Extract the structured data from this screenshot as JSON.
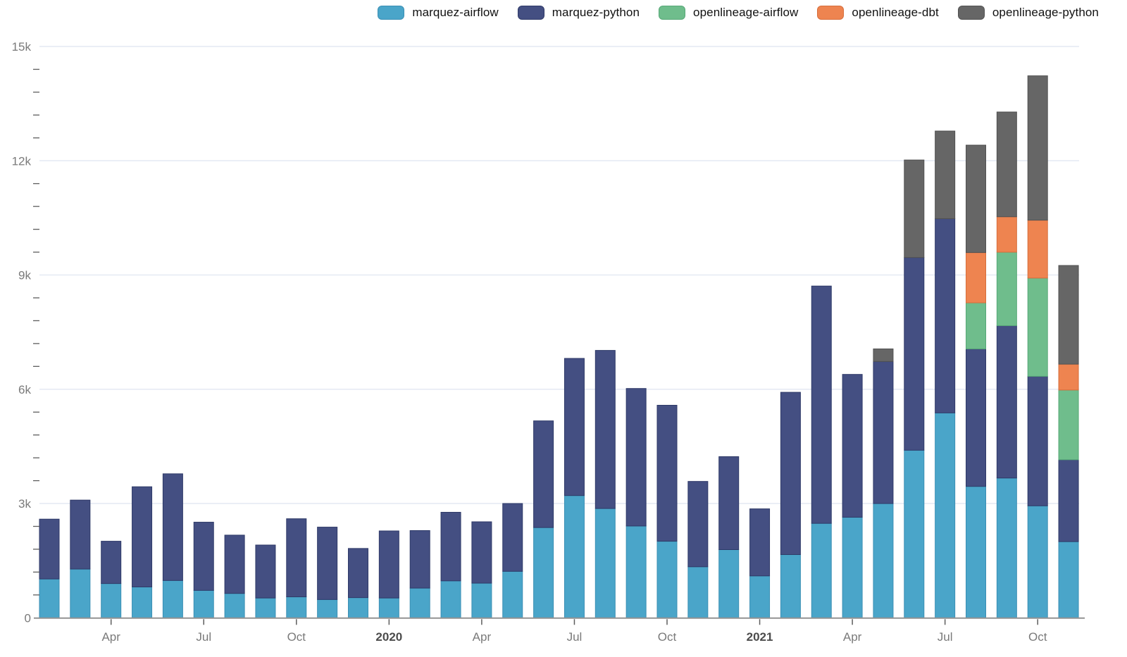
{
  "chart_data": {
    "type": "bar",
    "stacked": true,
    "title": "",
    "xlabel": "",
    "ylabel": "",
    "ylim": [
      0,
      15000
    ],
    "grid": "horizontal-major",
    "legend_position": "top-right",
    "y_major_ticks": [
      {
        "value": 0,
        "label": "0"
      },
      {
        "value": 3000,
        "label": "3k"
      },
      {
        "value": 6000,
        "label": "6k"
      },
      {
        "value": 9000,
        "label": "9k"
      },
      {
        "value": 12000,
        "label": "12k"
      },
      {
        "value": 15000,
        "label": "15k"
      }
    ],
    "y_minor_tick_step": 600,
    "categories": [
      "2019-02",
      "2019-03",
      "2019-04",
      "2019-05",
      "2019-06",
      "2019-07",
      "2019-08",
      "2019-09",
      "2019-10",
      "2019-11",
      "2019-12",
      "2020-01",
      "2020-02",
      "2020-03",
      "2020-04",
      "2020-05",
      "2020-06",
      "2020-07",
      "2020-08",
      "2020-09",
      "2020-10",
      "2020-11",
      "2020-12",
      "2021-01",
      "2021-02",
      "2021-03",
      "2021-04",
      "2021-05",
      "2021-06",
      "2021-07",
      "2021-08",
      "2021-09",
      "2021-10",
      "2021-11"
    ],
    "x_tick_labels": [
      {
        "index": 2,
        "label": "Apr",
        "bold": false
      },
      {
        "index": 5,
        "label": "Jul",
        "bold": false
      },
      {
        "index": 8,
        "label": "Oct",
        "bold": false
      },
      {
        "index": 11,
        "label": "2020",
        "bold": true
      },
      {
        "index": 14,
        "label": "Apr",
        "bold": false
      },
      {
        "index": 17,
        "label": "Jul",
        "bold": false
      },
      {
        "index": 20,
        "label": "Oct",
        "bold": false
      },
      {
        "index": 23,
        "label": "2021",
        "bold": true
      },
      {
        "index": 26,
        "label": "Apr",
        "bold": false
      },
      {
        "index": 29,
        "label": "Jul",
        "bold": false
      },
      {
        "index": 32,
        "label": "Oct",
        "bold": false
      }
    ],
    "series": [
      {
        "name": "marquez-airflow",
        "color": "#4AA5C9",
        "border": "#3B8FB4",
        "values": [
          1020,
          1280,
          900,
          810,
          980,
          720,
          640,
          520,
          550,
          480,
          530,
          520,
          780,
          970,
          910,
          1220,
          2370,
          3210,
          2870,
          2410,
          2010,
          1340,
          1790,
          1100,
          1660,
          2480,
          2640,
          3000,
          4400,
          5380,
          3450,
          3670,
          2940,
          2000
        ]
      },
      {
        "name": "marquez-python",
        "color": "#444F82",
        "border": "#2F3A68",
        "values": [
          1570,
          1810,
          1110,
          2630,
          2800,
          1790,
          1530,
          1390,
          2050,
          1900,
          1290,
          1760,
          1510,
          1800,
          1610,
          1780,
          2800,
          3600,
          4150,
          3610,
          3570,
          2240,
          2440,
          1760,
          4260,
          6230,
          3750,
          3730,
          5060,
          5100,
          3610,
          4000,
          3400,
          2150
        ]
      },
      {
        "name": "openlineage-airflow",
        "color": "#6FBD8C",
        "border": "#57A877",
        "values": [
          0,
          0,
          0,
          0,
          0,
          0,
          0,
          0,
          0,
          0,
          0,
          0,
          0,
          0,
          0,
          0,
          0,
          0,
          0,
          0,
          0,
          0,
          0,
          0,
          0,
          0,
          0,
          0,
          0,
          0,
          1210,
          1930,
          2580,
          1830
        ]
      },
      {
        "name": "openlineage-dbt",
        "color": "#EE8450",
        "border": "#D66E3C",
        "values": [
          0,
          0,
          0,
          0,
          0,
          0,
          0,
          0,
          0,
          0,
          0,
          0,
          0,
          0,
          0,
          0,
          0,
          0,
          0,
          0,
          0,
          0,
          0,
          0,
          0,
          0,
          0,
          0,
          0,
          0,
          1320,
          930,
          1520,
          680
        ]
      },
      {
        "name": "openlineage-python",
        "color": "#666666",
        "border": "#525252",
        "values": [
          0,
          0,
          0,
          0,
          0,
          0,
          0,
          0,
          0,
          0,
          0,
          0,
          0,
          0,
          0,
          0,
          0,
          0,
          0,
          0,
          0,
          0,
          0,
          0,
          0,
          0,
          0,
          330,
          2560,
          2300,
          2820,
          2750,
          3790,
          2590
        ]
      }
    ],
    "colors": {
      "gridline": "#E4E9F3",
      "axis_line": "#939393",
      "tick_mark": "#5E5E5E",
      "tick_label": "#7A7A7A",
      "year_label": "#4C4C4C"
    }
  }
}
